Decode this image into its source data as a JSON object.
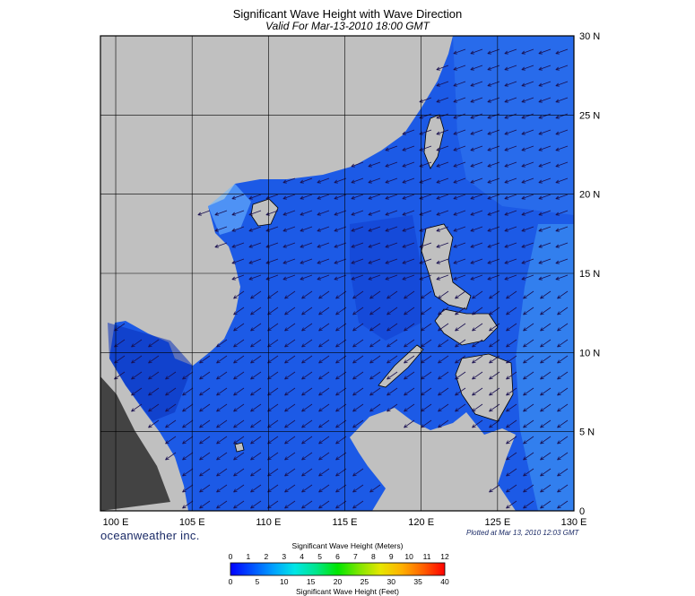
{
  "header": {
    "title": "Significant Wave Height with Wave Direction",
    "subtitle": "Valid For Mar-13-2010 18:00 GMT"
  },
  "map": {
    "lon_range": [
      99,
      130
    ],
    "lat_range": [
      0,
      30
    ],
    "lon_ticks": [
      100,
      105,
      110,
      115,
      120,
      125,
      130
    ],
    "lon_tick_labels": [
      "100 E",
      "105 E",
      "110 E",
      "115 E",
      "120 E",
      "125 E",
      "130 E"
    ],
    "lat_ticks": [
      0,
      5,
      10,
      15,
      20,
      25,
      30
    ],
    "lat_tick_labels": [
      "0",
      "5 N",
      "10 N",
      "15 N",
      "20 N",
      "25 N",
      "30 N"
    ],
    "land_color": "#c0c0c0",
    "sea_color": "#1c5ae6"
  },
  "footer": {
    "brand": "oceanweather inc.",
    "plotted": "Plotted at Mar 13, 2010 12:03 GMT"
  },
  "colorbar": {
    "title_top": "Significant Wave Height (Meters)",
    "title_bottom": "Significant Wave Height (Feet)",
    "meters": [
      "0",
      "1",
      "2",
      "3",
      "4",
      "5",
      "6",
      "7",
      "8",
      "9",
      "10",
      "11",
      "12"
    ],
    "feet": [
      "0",
      "5",
      "10",
      "15",
      "20",
      "25",
      "30",
      "35",
      "40"
    ],
    "colors": [
      "#0000ff",
      "#0050ff",
      "#00a0ff",
      "#00e6e6",
      "#00e68c",
      "#00e600",
      "#7fe600",
      "#e6e600",
      "#ffb000",
      "#ff6000",
      "#ff0000"
    ]
  }
}
